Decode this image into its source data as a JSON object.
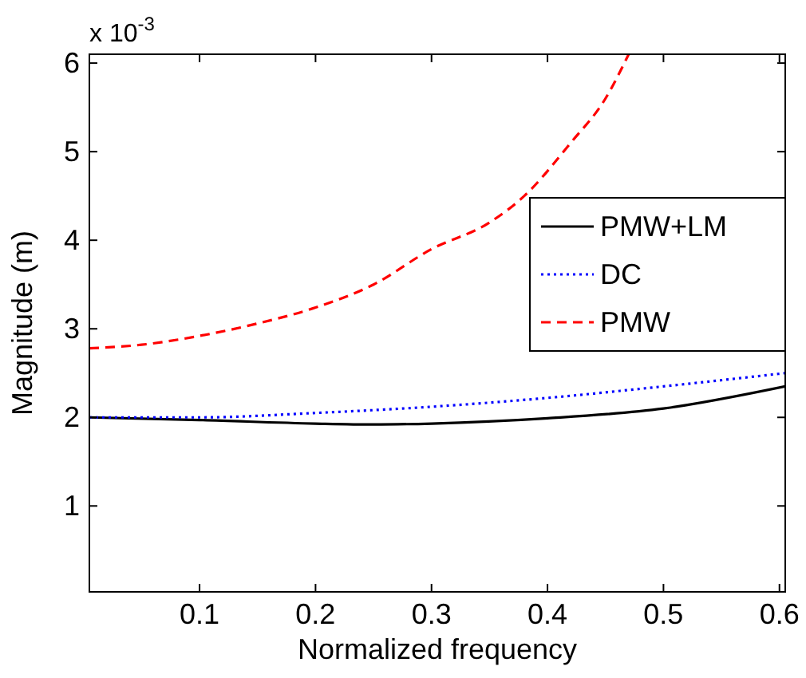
{
  "chart_data": {
    "type": "line",
    "xlabel": "Normalized frequency",
    "ylabel": "Magnitude (m)",
    "annotations": [
      "x 10$^{-3}$"
    ],
    "xlim": [
      0.005,
      0.605
    ],
    "xticks": [
      0.1,
      0.2,
      0.3,
      0.4,
      0.5,
      0.6
    ],
    "ylim": [
      0.03,
      6.1
    ],
    "yticks": [
      1,
      2,
      3,
      4,
      5,
      6
    ],
    "grid": false,
    "legend": "right",
    "series": [
      {
        "name": "PMW+LM",
        "color": "#000000",
        "line_style": "solid",
        "x": [
          0.005,
          0.1,
          0.2,
          0.25,
          0.3,
          0.4,
          0.5,
          0.605
        ],
        "values": [
          2.0,
          1.97,
          1.93,
          1.92,
          1.93,
          1.99,
          2.1,
          2.35
        ]
      },
      {
        "name": "DC",
        "color": "#0000ff",
        "line_style": "dotted",
        "x": [
          0.005,
          0.1,
          0.2,
          0.3,
          0.4,
          0.5,
          0.605
        ],
        "values": [
          2.0,
          2.0,
          2.05,
          2.12,
          2.22,
          2.35,
          2.5
        ]
      },
      {
        "name": "PMW",
        "color": "#ff0000",
        "line_style": "dashed",
        "x": [
          0.005,
          0.05,
          0.1,
          0.15,
          0.2,
          0.25,
          0.3,
          0.35,
          0.38,
          0.42,
          0.45,
          0.47
        ],
        "values": [
          2.78,
          2.82,
          2.92,
          3.06,
          3.24,
          3.5,
          3.9,
          4.2,
          4.5,
          5.1,
          5.6,
          6.1
        ]
      }
    ]
  }
}
